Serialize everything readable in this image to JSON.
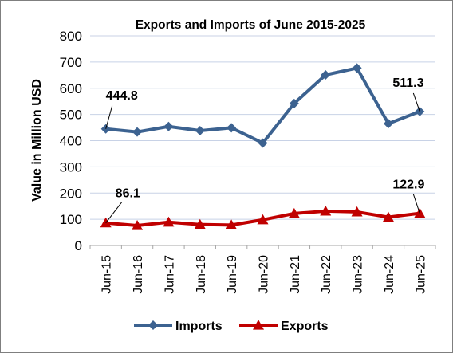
{
  "chart_data": {
    "type": "line",
    "title": "Exports and Imports of June 2015-2025",
    "ylabel": "Value in Million USD",
    "xlabel": "",
    "categories": [
      "Jun-15",
      "Jun-16",
      "Jun-17",
      "Jun-18",
      "Jun-19",
      "Jun-20",
      "Jun-21",
      "Jun-22",
      "Jun-23",
      "Jun-24",
      "Jun-25"
    ],
    "ylim": [
      0,
      800
    ],
    "yticks": [
      0,
      100,
      200,
      300,
      400,
      500,
      600,
      700,
      800
    ],
    "grid": true,
    "legend_position": "bottom",
    "series": [
      {
        "name": "Imports",
        "color": "#3c6290",
        "marker": "diamond",
        "values": [
          444.8,
          433,
          454,
          438,
          449,
          391,
          542,
          651,
          677,
          465,
          511.3
        ]
      },
      {
        "name": "Exports",
        "color": "#c00000",
        "marker": "triangle",
        "values": [
          86.1,
          76,
          89,
          80,
          78,
          98,
          122,
          131,
          128,
          108,
          122.9
        ]
      }
    ],
    "annotations": [
      {
        "series": 0,
        "index": 0,
        "text": "444.8"
      },
      {
        "series": 0,
        "index": 10,
        "text": "511.3"
      },
      {
        "series": 1,
        "index": 0,
        "text": "86.1"
      },
      {
        "series": 1,
        "index": 10,
        "text": "122.9"
      }
    ]
  }
}
